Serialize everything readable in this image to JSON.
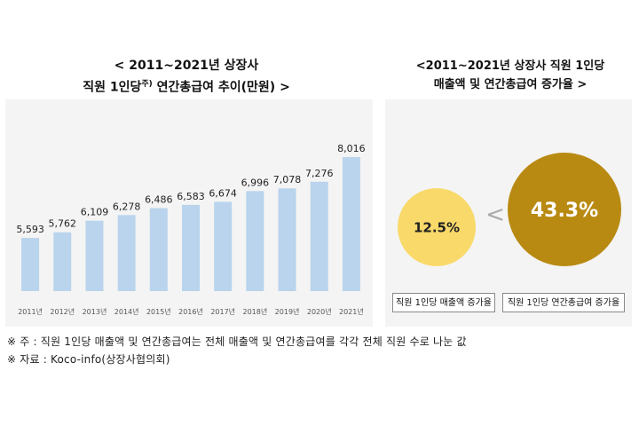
{
  "titles": {
    "left_line1": "< 2011~2021년 상장사",
    "left_line2": "직원 1인당",
    "left_sup": "주)",
    "left_line2_rest": " 연간총급여 추이(만원) >",
    "right_line1": "<2011~2021년 상장사 직원 1인당",
    "right_line2": "매출액 및 연간총급여 증가율 >"
  },
  "chart_data": [
    {
      "type": "bar",
      "categories": [
        "2011년",
        "2012년",
        "2013년",
        "2014년",
        "2015년",
        "2016년",
        "2017년",
        "2018년",
        "2019년",
        "2020년",
        "2021년"
      ],
      "values": [
        5593,
        5762,
        6109,
        6278,
        6486,
        6583,
        6674,
        6996,
        7078,
        7276,
        8016
      ],
      "value_labels": [
        "5,593",
        "5,762",
        "6,109",
        "6,278",
        "6,486",
        "6,583",
        "6,674",
        "6,996",
        "7,078",
        "7,276",
        "8,016"
      ],
      "ylim": [
        4000,
        8600
      ],
      "grid": false,
      "bar_color": "#b9d4ec"
    },
    {
      "type": "bubble",
      "items": [
        {
          "label": "직원 1인당 매출액 증가율",
          "value": 12.5,
          "value_label": "12.5%",
          "color": "#f9d96a",
          "text_color": "#222222"
        },
        {
          "label": "직원 1인당 연간총급여 증가율",
          "value": 43.3,
          "value_label": "43.3%",
          "color": "#b98a12",
          "text_color": "#ffffff"
        }
      ],
      "comparator": "<"
    }
  ],
  "notes": {
    "note1": "※ 주 : 직원 1인당 매출액 및 연간총급여는 전체 매출액 및 연간총급여를 각각 전체 직원 수로 나눈 값",
    "note2": "※ 자료 : Koco-info(상장사협의회)"
  }
}
